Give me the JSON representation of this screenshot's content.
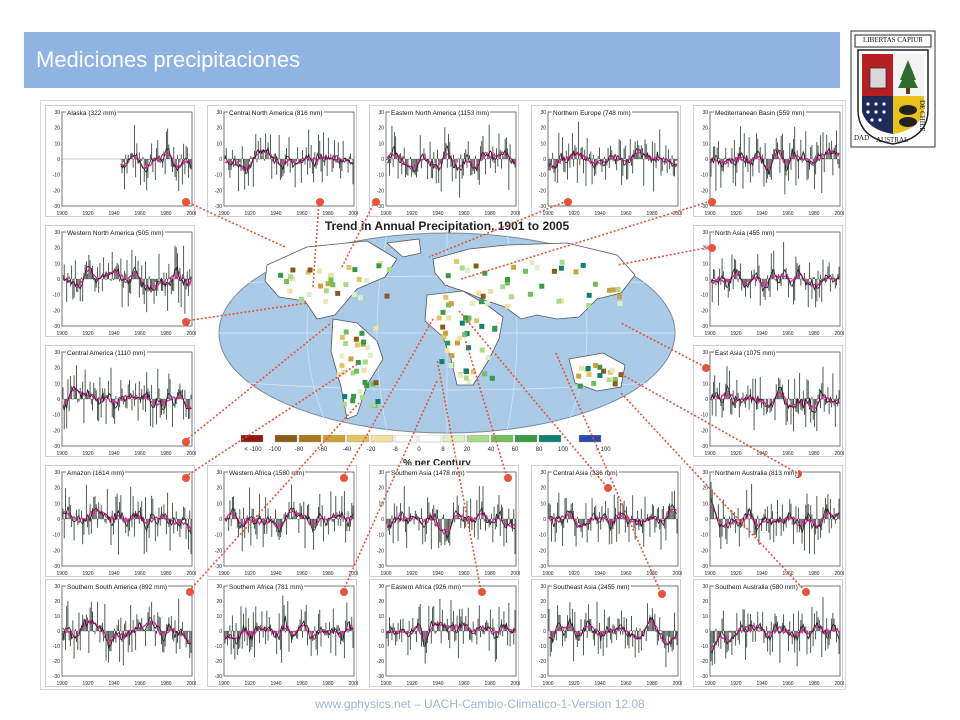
{
  "slide": {
    "title": "Mediciones precipitaciones",
    "footer": "www.gphysics.net – UACH-Cambio-Climatico-1-Version 12.08"
  },
  "logo": {
    "motto": "LIBERTAS CAPIUR",
    "ring_text_left": "DAD",
    "ring_text_mid": "AUSTRAL",
    "ring_text_right": "DE CHILE"
  },
  "map": {
    "title": "Trend in Annual Precipitation, 1901 to 2005",
    "legend_title": "% per Century",
    "legend_ticks": [
      "< -100",
      "-100",
      "-80",
      "-60",
      "-40",
      "-20",
      "-8",
      "0",
      "8",
      "20",
      "40",
      "60",
      "80",
      "100",
      "> 100"
    ],
    "legend_colors": [
      "#8b1a10",
      "#8a5a1c",
      "#a8761e",
      "#c9a23a",
      "#e0c566",
      "#efe0a4",
      "#ffffff",
      "#ffffff",
      "#dcefc6",
      "#a9d98c",
      "#6fbf5a",
      "#3a9a44",
      "#0f7f6e",
      "#2a49a8"
    ]
  },
  "panels": [
    {
      "title": "Alaska (322 mm)"
    },
    {
      "title": "Central North America (816 mm)"
    },
    {
      "title": "Eastern North America (1153 mm)"
    },
    {
      "title": "Northern Europe (748 mm)"
    },
    {
      "title": "Mediterranean Basin (559 mm)"
    },
    {
      "title": "Western North America (505 mm)"
    },
    {
      "title": "North Asia (455 mm)"
    },
    {
      "title": "Central America (1110 mm)"
    },
    {
      "title": "East Asia (1075 mm)"
    },
    {
      "title": "Amazon (1614 mm)"
    },
    {
      "title": "Western Africa (1580 mm)"
    },
    {
      "title": "Southern Asia (1478 mm)"
    },
    {
      "title": "Central Asia (336 mm)"
    },
    {
      "title": "Northern Australia (813 mm)"
    },
    {
      "title": "Southern South America (892 mm)"
    },
    {
      "title": "Southern Africa (781 mm)"
    },
    {
      "title": "Eastern Africa (926 mm)"
    },
    {
      "title": "Southeast Asia (2455 mm)"
    },
    {
      "title": "Southern Australia (580 mm)"
    }
  ],
  "axis": {
    "y_ticks": [
      "30",
      "20",
      "10",
      "0",
      "-10",
      "-20",
      "-30"
    ],
    "x_ticks": [
      "1900",
      "1920",
      "1940",
      "1960",
      "1980",
      "2000"
    ]
  },
  "colors": {
    "title_bar": "#8fb3e2",
    "bar": "#3c4a40",
    "smooth_line": "#e0289b",
    "marker": "#e8533a",
    "leader": "#e8533a",
    "ocean": "#a9cbe8",
    "land": "#ffffff"
  }
}
